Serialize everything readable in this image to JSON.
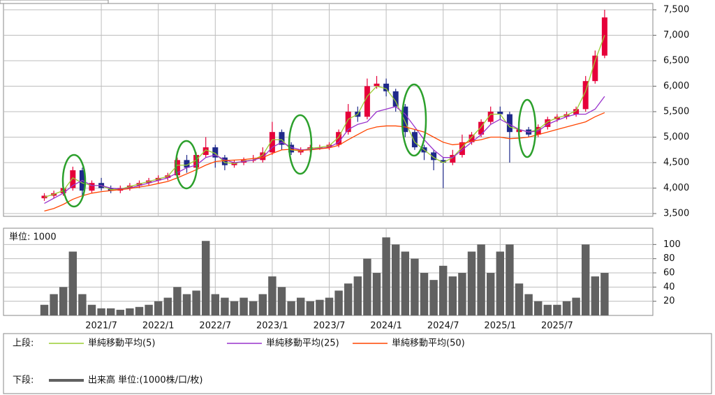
{
  "chart_data": [
    {
      "type": "candlestick",
      "legend_title": "上段:",
      "open": [
        3800,
        3850,
        3900,
        4000,
        4350,
        3950,
        4100,
        4000,
        3950,
        4000,
        4050,
        4100,
        4150,
        4200,
        4250,
        4550,
        4400,
        4650,
        4800,
        4600,
        4450,
        4500,
        4550,
        4550,
        4700,
        5100,
        4850,
        4700,
        4750,
        4800,
        4800,
        4850,
        5100,
        5500,
        5400,
        6000,
        6050,
        5900,
        5600,
        5100,
        4800,
        4700,
        4550,
        4500,
        4650,
        4900,
        5050,
        5300,
        5500,
        5450,
        5100,
        5150,
        5050,
        5200,
        5350,
        5400,
        5450,
        5550,
        6100,
        6600
      ],
      "high": [
        3900,
        3950,
        4050,
        4420,
        4400,
        4150,
        4200,
        4050,
        4050,
        4100,
        4150,
        4200,
        4250,
        4300,
        4600,
        4650,
        4700,
        5000,
        4850,
        4650,
        4550,
        4600,
        4650,
        4800,
        5300,
        5150,
        4900,
        4800,
        4850,
        4850,
        4900,
        5150,
        5650,
        5600,
        6150,
        6200,
        6150,
        5950,
        5650,
        5150,
        4850,
        4750,
        4600,
        4750,
        5050,
        5100,
        5350,
        5600,
        5600,
        5500,
        5200,
        5200,
        5250,
        5400,
        5450,
        5500,
        5600,
        6200,
        6700,
        7500
      ],
      "low": [
        3750,
        3800,
        3850,
        3950,
        3850,
        3900,
        3950,
        3900,
        3900,
        3950,
        4000,
        4050,
        4100,
        4150,
        4200,
        4300,
        4350,
        4600,
        4400,
        4350,
        4400,
        4450,
        4500,
        4500,
        4650,
        4750,
        4650,
        4650,
        4700,
        4750,
        4750,
        4800,
        5050,
        5300,
        5350,
        5950,
        5800,
        5500,
        5000,
        4750,
        4550,
        4350,
        4000,
        4450,
        4600,
        4850,
        5000,
        5250,
        5350,
        4500,
        4950,
        5000,
        5000,
        5150,
        5300,
        5350,
        5400,
        5500,
        6050,
        6550
      ],
      "close": [
        3850,
        3900,
        4000,
        4350,
        3950,
        4100,
        4000,
        3950,
        4000,
        4050,
        4100,
        4150,
        4200,
        4250,
        4550,
        4400,
        4650,
        4800,
        4600,
        4450,
        4500,
        4550,
        4550,
        4700,
        5100,
        4850,
        4700,
        4750,
        4800,
        4800,
        4850,
        5100,
        5500,
        5400,
        6000,
        6050,
        5900,
        5600,
        5100,
        4800,
        4700,
        4550,
        4500,
        4650,
        4900,
        5050,
        5300,
        5500,
        5450,
        5100,
        5150,
        5050,
        5200,
        5350,
        5400,
        5450,
        5550,
        6100,
        6600,
        7350
      ],
      "up_color": "#e6003a",
      "down_color": "#1f2a8a",
      "series": [
        {
          "name": "単純移動平均(5)",
          "color": "#9acd32",
          "values": [
            3820,
            3880,
            3950,
            4200,
            4100,
            4050,
            4050,
            3970,
            3980,
            4030,
            4080,
            4130,
            4180,
            4230,
            4450,
            4450,
            4550,
            4750,
            4680,
            4500,
            4480,
            4530,
            4550,
            4650,
            4950,
            4950,
            4750,
            4730,
            4780,
            4800,
            4830,
            5000,
            5350,
            5450,
            5800,
            6000,
            5950,
            5700,
            5300,
            4900,
            4750,
            4600,
            4500,
            4600,
            4800,
            5000,
            5200,
            5450,
            5450,
            5200,
            5150,
            5100,
            5150,
            5300,
            5380,
            5430,
            5520,
            5900,
            6500,
            7000
          ]
        },
        {
          "name": "単純移動平均(25)",
          "color": "#9932cc",
          "values": [
            3700,
            3800,
            3900,
            4050,
            4150,
            4050,
            4050,
            4000,
            3980,
            4000,
            4050,
            4100,
            4150,
            4200,
            4300,
            4400,
            4450,
            4600,
            4650,
            4550,
            4500,
            4520,
            4550,
            4600,
            4800,
            4900,
            4800,
            4750,
            4760,
            4780,
            4800,
            4900,
            5150,
            5250,
            5300,
            5500,
            5550,
            5600,
            5450,
            5200,
            4950,
            4750,
            4600,
            4600,
            4750,
            4900,
            5050,
            5250,
            5350,
            5250,
            5150,
            5100,
            5120,
            5250,
            5330,
            5400,
            5450,
            5450,
            5550,
            5800
          ]
        },
        {
          "name": "単純移動平均(50)",
          "color": "#ff4500",
          "values": [
            3550,
            3600,
            3680,
            3780,
            3850,
            3900,
            3930,
            3950,
            3970,
            3990,
            4020,
            4050,
            4090,
            4130,
            4200,
            4280,
            4360,
            4450,
            4520,
            4540,
            4550,
            4560,
            4580,
            4600,
            4680,
            4750,
            4760,
            4740,
            4750,
            4770,
            4790,
            4840,
            4950,
            5050,
            5150,
            5200,
            5220,
            5220,
            5200,
            5150,
            5100,
            5000,
            4900,
            4850,
            4870,
            4920,
            4950,
            5000,
            5000,
            4970,
            4980,
            5000,
            5050,
            5100,
            5150,
            5200,
            5250,
            5300,
            5400,
            5480
          ]
        }
      ],
      "ylim": [
        3500,
        7500
      ],
      "yticks": [
        {
          "value": 3500,
          "label": "3,500"
        },
        {
          "value": 4000,
          "label": "4,000"
        },
        {
          "value": 4500,
          "label": "4,500"
        },
        {
          "value": 5000,
          "label": "5,000"
        },
        {
          "value": 5500,
          "label": "5,500"
        },
        {
          "value": 6000,
          "label": "6,000"
        },
        {
          "value": 6500,
          "label": "6,500"
        },
        {
          "value": 7000,
          "label": "7,000"
        },
        {
          "value": 7500,
          "label": "7,500"
        }
      ],
      "grid": true
    },
    {
      "type": "bar",
      "title": "単位: 1000",
      "legend_title": "下段:",
      "categories": [
        null,
        null,
        null,
        null,
        null,
        null,
        "2021/7",
        null,
        null,
        null,
        null,
        null,
        "2022/1",
        null,
        null,
        null,
        null,
        null,
        "2022/7",
        null,
        null,
        null,
        null,
        null,
        "2023/1",
        null,
        null,
        null,
        null,
        null,
        "2023/7",
        null,
        null,
        null,
        null,
        null,
        "2024/1",
        null,
        null,
        null,
        null,
        null,
        "2024/7",
        null,
        null,
        null,
        null,
        null,
        "2025/1",
        null,
        null,
        null,
        null,
        null,
        "2025/7",
        null,
        null,
        null,
        null,
        null
      ],
      "series": [
        {
          "name": "出来高 単位:(1000株/口/枚)",
          "color": "#616161",
          "values": [
            15,
            30,
            40,
            90,
            30,
            15,
            10,
            10,
            8,
            10,
            12,
            15,
            20,
            25,
            40,
            30,
            35,
            105,
            30,
            25,
            20,
            25,
            20,
            30,
            55,
            40,
            20,
            25,
            20,
            22,
            25,
            35,
            45,
            55,
            80,
            60,
            110,
            100,
            90,
            80,
            60,
            50,
            70,
            55,
            60,
            90,
            100,
            60,
            90,
            100,
            45,
            30,
            20,
            15,
            15,
            20,
            25,
            100,
            55,
            60
          ]
        }
      ],
      "ylim": [
        0,
        120
      ],
      "yticks": [
        20,
        40,
        60,
        80,
        100
      ],
      "grid": true
    }
  ]
}
